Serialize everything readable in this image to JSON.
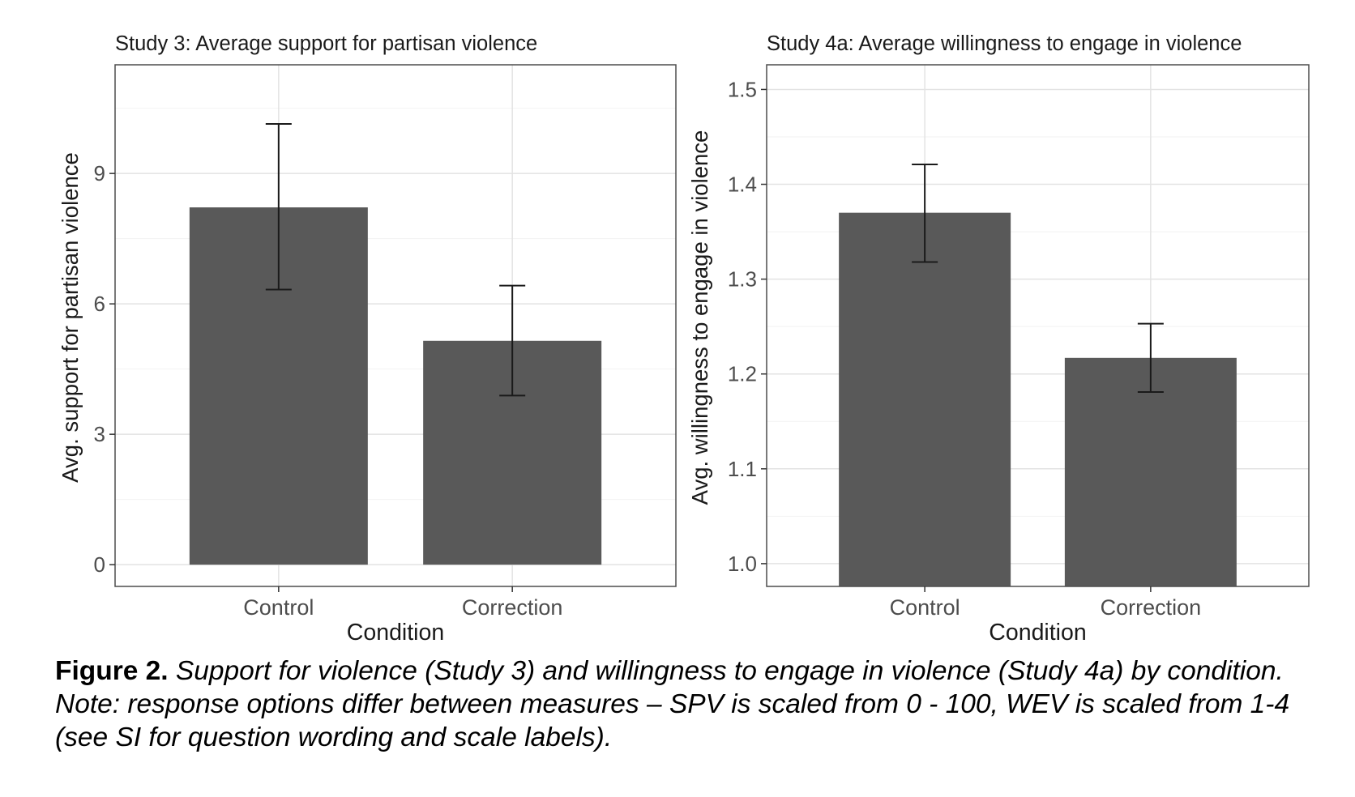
{
  "chart_data": [
    {
      "type": "bar",
      "title": "Study 3: Average support for partisan violence",
      "xlabel": "Condition",
      "ylabel": "Avg. support for partisan violence",
      "categories": [
        "Control",
        "Correction"
      ],
      "values": [
        8.22,
        5.15
      ],
      "error_low": [
        6.33,
        3.89
      ],
      "error_high": [
        10.14,
        6.42
      ],
      "ylim": [
        -0.5,
        11.5
      ],
      "yticks": [
        0,
        3,
        6,
        9
      ],
      "ytick_labels": [
        "0",
        "3",
        "6",
        "9"
      ],
      "bar_color": "#595959",
      "grid": true
    },
    {
      "type": "bar",
      "title": "Study 4a: Average willingness to engage in violence",
      "xlabel": "Condition",
      "ylabel": "Avg. willingness to engage in violence",
      "categories": [
        "Control",
        "Correction"
      ],
      "values": [
        1.37,
        1.217
      ],
      "error_low": [
        1.318,
        1.181
      ],
      "error_high": [
        1.421,
        1.253
      ],
      "ylim": [
        0.976,
        1.526
      ],
      "yticks": [
        1.0,
        1.1,
        1.2,
        1.3,
        1.4,
        1.5
      ],
      "ytick_labels": [
        "1.0",
        "1.1",
        "1.2",
        "1.3",
        "1.4",
        "1.5"
      ],
      "bar_color": "#595959",
      "grid": true
    }
  ],
  "caption": {
    "label": "Figure 2.",
    "text": " Support for violence (Study 3) and willingness to engage in violence (Study 4a) by condition. Note: response options differ between measures – SPV is scaled from 0 - 100, WEV is scaled from 1-4 (see SI for question wording and scale labels)."
  }
}
